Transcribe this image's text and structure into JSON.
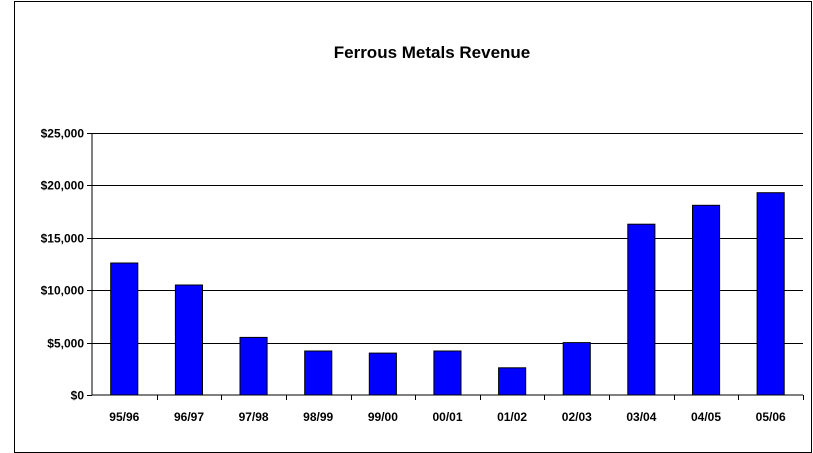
{
  "chart_data": {
    "type": "bar",
    "title": "Ferrous Metals Revenue",
    "xlabel": "",
    "ylabel": "",
    "categories": [
      "95/96",
      "96/97",
      "97/98",
      "98/99",
      "99/00",
      "00/01",
      "01/02",
      "02/03",
      "03/04",
      "04/05",
      "05/06"
    ],
    "values": [
      12600,
      10500,
      5500,
      4200,
      4000,
      4200,
      2600,
      5000,
      16300,
      18100,
      19300
    ],
    "ylim": [
      0,
      25000
    ],
    "yticks": [
      0,
      5000,
      10000,
      15000,
      20000,
      25000
    ],
    "ytick_labels": [
      "$0",
      "$5,000",
      "$10,000",
      "$15,000",
      "$20,000",
      "$25,000"
    ],
    "grid": true,
    "legend": "none",
    "colors": {
      "bar_fill": "#0000FF",
      "bar_stroke": "#000000",
      "grid": "#000000",
      "background": "#FFFFFF"
    }
  }
}
